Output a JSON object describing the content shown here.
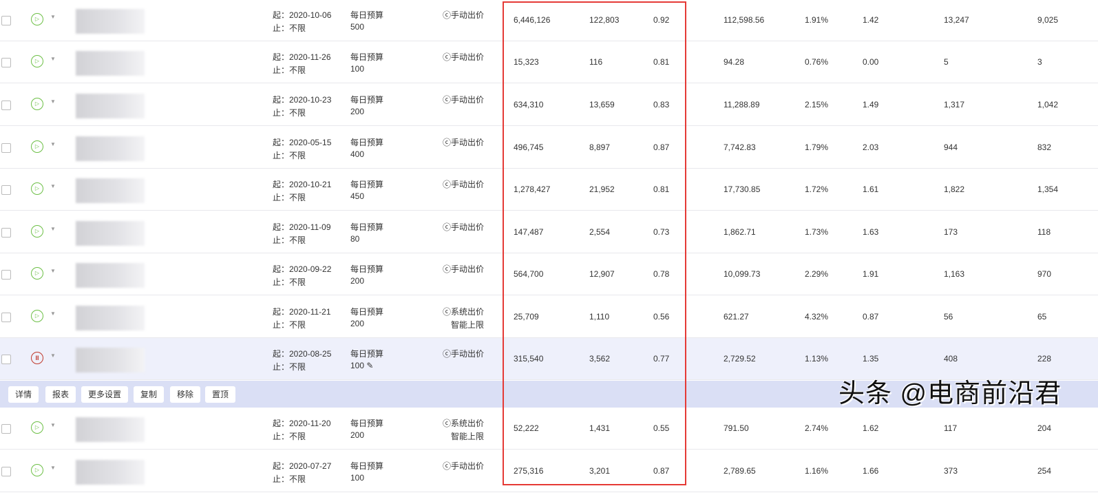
{
  "rows": [
    {
      "status": "running",
      "start": "起：2020-10-06",
      "end": "止：不限",
      "budget_label": "每日预算",
      "budget": "500",
      "bid": "ⓒ手动出价",
      "bid2": "",
      "v": [
        "6,446,126",
        "122,803",
        "0.92",
        "112,598.56",
        "1.91%",
        "1.42",
        "13,247",
        "9,025"
      ]
    },
    {
      "status": "running",
      "start": "起：2020-11-26",
      "end": "止：不限",
      "budget_label": "每日预算",
      "budget": "100",
      "bid": "ⓒ手动出价",
      "bid2": "",
      "v": [
        "15,323",
        "116",
        "0.81",
        "94.28",
        "0.76%",
        "0.00",
        "5",
        "3"
      ]
    },
    {
      "status": "running",
      "start": "起：2020-10-23",
      "end": "止：不限",
      "budget_label": "每日预算",
      "budget": "200",
      "bid": "ⓒ手动出价",
      "bid2": "",
      "v": [
        "634,310",
        "13,659",
        "0.83",
        "11,288.89",
        "2.15%",
        "1.49",
        "1,317",
        "1,042"
      ]
    },
    {
      "status": "running",
      "start": "起：2020-05-15",
      "end": "止：不限",
      "budget_label": "每日预算",
      "budget": "400",
      "bid": "ⓒ手动出价",
      "bid2": "",
      "v": [
        "496,745",
        "8,897",
        "0.87",
        "7,742.83",
        "1.79%",
        "2.03",
        "944",
        "832"
      ]
    },
    {
      "status": "running",
      "start": "起：2020-10-21",
      "end": "止：不限",
      "budget_label": "每日预算",
      "budget": "450",
      "bid": "ⓒ手动出价",
      "bid2": "",
      "v": [
        "1,278,427",
        "21,952",
        "0.81",
        "17,730.85",
        "1.72%",
        "1.61",
        "1,822",
        "1,354"
      ]
    },
    {
      "status": "running",
      "start": "起：2020-11-09",
      "end": "止：不限",
      "budget_label": "每日预算",
      "budget": "80",
      "bid": "ⓒ手动出价",
      "bid2": "",
      "v": [
        "147,487",
        "2,554",
        "0.73",
        "1,862.71",
        "1.73%",
        "1.63",
        "173",
        "118"
      ]
    },
    {
      "status": "running",
      "start": "起：2020-09-22",
      "end": "止：不限",
      "budget_label": "每日预算",
      "budget": "200",
      "bid": "ⓒ手动出价",
      "bid2": "",
      "v": [
        "564,700",
        "12,907",
        "0.78",
        "10,099.73",
        "2.29%",
        "1.91",
        "1,163",
        "970"
      ]
    },
    {
      "status": "running",
      "start": "起：2020-11-21",
      "end": "止：不限",
      "budget_label": "每日预算",
      "budget": "200",
      "bid": "ⓒ系统出价",
      "bid2": "智能上限",
      "v": [
        "25,709",
        "1,110",
        "0.56",
        "621.27",
        "4.32%",
        "0.87",
        "56",
        "65"
      ]
    },
    {
      "status": "paused",
      "start": "起：2020-08-25",
      "end": "止：不限",
      "budget_label": "每日预算",
      "budget": "100 ✎",
      "bid": "ⓒ手动出价",
      "bid2": "",
      "v": [
        "315,540",
        "3,562",
        "0.77",
        "2,729.52",
        "1.13%",
        "1.35",
        "408",
        "228"
      ]
    },
    {
      "status": "running",
      "start": "起：2020-11-20",
      "end": "止：不限",
      "budget_label": "每日预算",
      "budget": "200",
      "bid": "ⓒ系统出价",
      "bid2": "智能上限",
      "v": [
        "52,222",
        "1,431",
        "0.55",
        "791.50",
        "2.74%",
        "1.62",
        "117",
        "204"
      ]
    },
    {
      "status": "running",
      "start": "起：2020-07-27",
      "end": "止：不限",
      "budget_label": "每日预算",
      "budget": "100",
      "bid": "ⓒ手动出价",
      "bid2": "",
      "v": [
        "275,316",
        "3,201",
        "0.87",
        "2,789.65",
        "1.16%",
        "1.66",
        "373",
        "254"
      ]
    }
  ],
  "actions": [
    "详情",
    "报表",
    "更多设置",
    "复制",
    "移除",
    "置顶"
  ],
  "watermark": "头条 @电商前沿君",
  "colors": {
    "highlight_box": "#e53935",
    "selected_row": "#eef0fb",
    "action_bar": "#dadff5",
    "running": "#6cbf45",
    "paused": "#c0392b"
  }
}
